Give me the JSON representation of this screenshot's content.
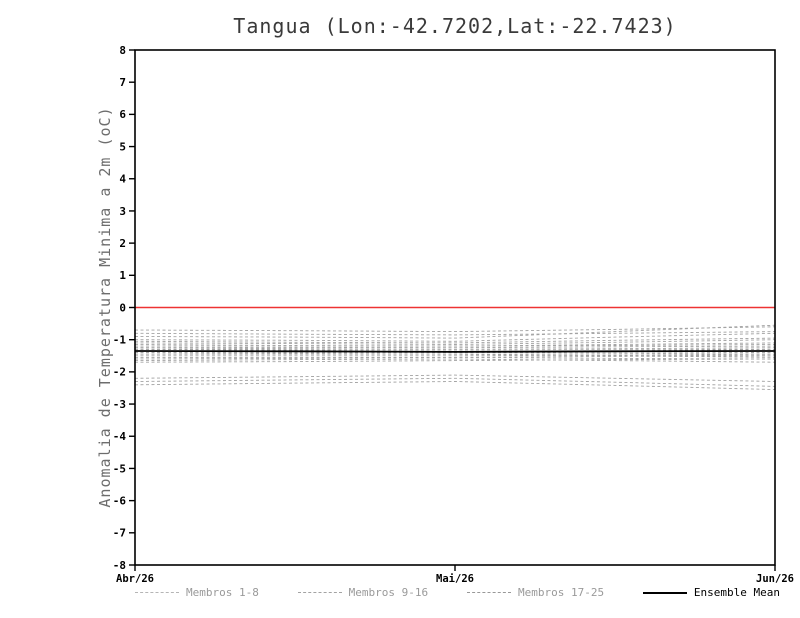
{
  "title": "Tangua (Lon:-42.7202,Lat:-22.7423)",
  "chart_data": {
    "type": "line",
    "title": "Tangua (Lon:-42.7202,Lat:-22.7423)",
    "xlabel": "",
    "ylabel": "Anomalia de Temperatura Minima a 2m (oC)",
    "ylim": [
      -8,
      8
    ],
    "ytick_step": 1,
    "x": [
      0,
      0.25,
      0.5,
      0.75,
      1
    ],
    "x_ticks": [
      "Abr/26",
      "Mai/26",
      "Jun/26"
    ],
    "x_tick_pos": [
      0,
      0.5,
      1
    ],
    "grid": false,
    "zero_line": {
      "y": 0,
      "color": "#ee3333"
    },
    "members": {
      "color": "#a3a3a3",
      "dash": "3 2.5",
      "groups": [
        {
          "name": "Membros 1-8",
          "series": [
            [
              -0.7,
              -0.72,
              -0.75,
              -0.68,
              -0.6
            ],
            [
              -0.8,
              -0.83,
              -0.85,
              -0.8,
              -0.75
            ],
            [
              -0.9,
              -0.92,
              -0.95,
              -0.75,
              -0.55
            ],
            [
              -1.0,
              -1.02,
              -1.05,
              -0.92,
              -0.8
            ],
            [
              -1.05,
              -1.08,
              -1.1,
              -1.02,
              -0.95
            ],
            [
              -1.1,
              -1.12,
              -1.15,
              -1.08,
              -1.0
            ],
            [
              -1.15,
              -1.18,
              -1.2,
              -1.15,
              -1.1
            ],
            [
              -1.2,
              -1.2,
              -1.2,
              -1.18,
              -1.15
            ]
          ]
        },
        {
          "name": "Membros 9-16",
          "series": [
            [
              -1.25,
              -1.24,
              -1.25,
              -1.22,
              -1.2
            ],
            [
              -1.25,
              -1.28,
              -1.3,
              -1.28,
              -1.25
            ],
            [
              -1.3,
              -1.3,
              -1.3,
              -1.3,
              -1.3
            ],
            [
              -1.3,
              -1.33,
              -1.35,
              -1.35,
              -1.35
            ],
            [
              -1.35,
              -1.35,
              -1.35,
              -1.38,
              -1.4
            ],
            [
              -1.35,
              -1.38,
              -1.4,
              -1.42,
              -1.45
            ],
            [
              -1.4,
              -1.4,
              -1.4,
              -1.35,
              -1.3
            ],
            [
              -1.4,
              -1.43,
              -1.45,
              -1.48,
              -1.5
            ]
          ]
        },
        {
          "name": "Membros 17-25",
          "series": [
            [
              -1.45,
              -1.45,
              -1.45,
              -1.5,
              -1.55
            ],
            [
              -1.5,
              -1.5,
              -1.5,
              -1.48,
              -1.45
            ],
            [
              -1.55,
              -1.55,
              -1.55,
              -1.58,
              -1.6
            ],
            [
              -1.6,
              -1.58,
              -1.55,
              -1.52,
              -1.5
            ],
            [
              -1.65,
              -1.62,
              -1.6,
              -1.65,
              -1.7
            ],
            [
              -1.7,
              -1.68,
              -1.65,
              -1.62,
              -1.6
            ],
            [
              -2.2,
              -2.15,
              -2.1,
              -2.2,
              -2.3
            ],
            [
              -2.3,
              -2.25,
              -2.2,
              -2.32,
              -2.45
            ],
            [
              -2.4,
              -2.35,
              -2.3,
              -2.42,
              -2.55
            ]
          ]
        }
      ]
    },
    "ensemble_mean": {
      "name": "Ensemble Mean",
      "color": "#000000",
      "values": [
        -1.35,
        -1.36,
        -1.38,
        -1.36,
        -1.35
      ]
    }
  },
  "legend": [
    {
      "label": "Membros 1-8",
      "style": "dashed",
      "color": "#b5b5b5",
      "text_color": "#9a9a9a"
    },
    {
      "label": "Membros 9-16",
      "style": "dashed",
      "color": "#a3a3a3",
      "text_color": "#9a9a9a"
    },
    {
      "label": "Membros 17-25",
      "style": "dashed",
      "color": "#989898",
      "text_color": "#9a9a9a"
    },
    {
      "label": "Ensemble Mean",
      "style": "solid",
      "color": "#000000",
      "text_color": "#000000"
    }
  ]
}
